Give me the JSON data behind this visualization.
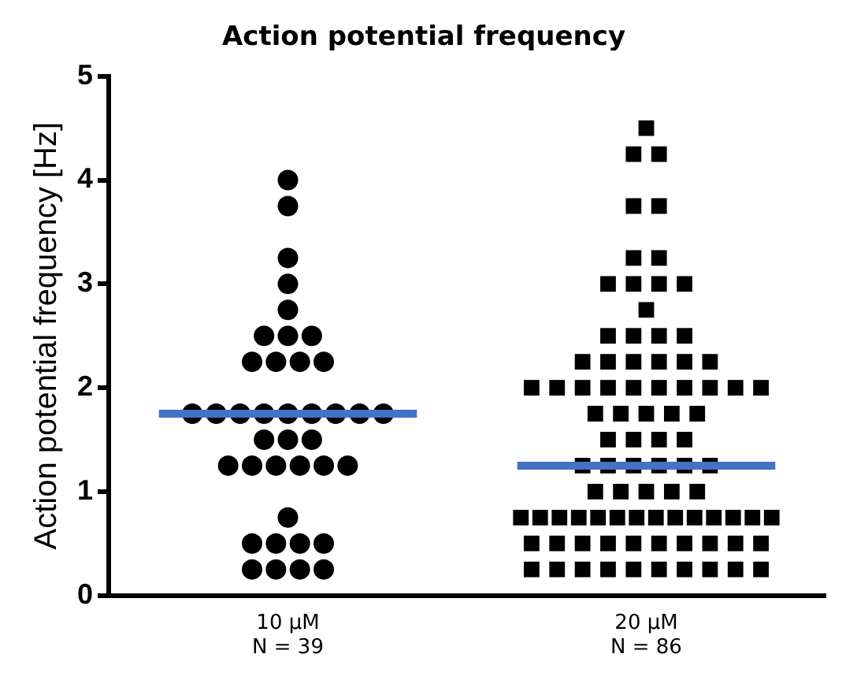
{
  "chart_data": {
    "type": "scatter",
    "title": "Action potential frequency",
    "ylabel": "Action potential frequency [Hz]",
    "categories": [
      "10 µM\nN = 39",
      "20 µM\nN = 86"
    ],
    "ylim": [
      0,
      5
    ],
    "yticks": [
      0,
      1,
      2,
      3,
      4,
      5
    ],
    "grid": false,
    "legend": false,
    "series": [
      {
        "marker": "circle",
        "color": "#000000",
        "x": [
          "10 µM\nN = 39",
          "10 µM\nN = 39",
          "10 µM\nN = 39",
          "10 µM\nN = 39",
          "10 µM\nN = 39",
          "10 µM\nN = 39",
          "10 µM\nN = 39",
          "10 µM\nN = 39",
          "10 µM\nN = 39",
          "10 µM\nN = 39",
          "10 µM\nN = 39",
          "10 µM\nN = 39",
          "10 µM\nN = 39",
          "10 µM\nN = 39",
          "10 µM\nN = 39",
          "10 µM\nN = 39",
          "10 µM\nN = 39",
          "10 µM\nN = 39",
          "10 µM\nN = 39",
          "10 µM\nN = 39",
          "10 µM\nN = 39",
          "10 µM\nN = 39",
          "10 µM\nN = 39",
          "10 µM\nN = 39",
          "10 µM\nN = 39",
          "10 µM\nN = 39",
          "10 µM\nN = 39",
          "10 µM\nN = 39",
          "10 µM\nN = 39",
          "10 µM\nN = 39",
          "10 µM\nN = 39",
          "10 µM\nN = 39",
          "10 µM\nN = 39",
          "10 µM\nN = 39",
          "10 µM\nN = 39",
          "10 µM\nN = 39",
          "10 µM\nN = 39",
          "10 µM\nN = 39",
          "10 µM\nN = 39"
        ],
        "values": [
          4,
          3.75,
          3.25,
          3,
          2.75,
          2.5,
          2.5,
          2.5,
          2.25,
          2.25,
          2.25,
          2.25,
          1.75,
          1.75,
          1.75,
          1.75,
          1.75,
          1.75,
          1.75,
          1.75,
          1.75,
          1.5,
          1.5,
          1.5,
          1.25,
          1.25,
          1.25,
          1.25,
          1.25,
          1.25,
          0.75,
          0.5,
          0.5,
          0.5,
          0.5,
          0.25,
          0.25,
          0.25,
          0.25
        ]
      },
      {
        "marker": "square",
        "color": "#000000",
        "x": [
          "20 µM\nN = 86",
          "20 µM\nN = 86",
          "20 µM\nN = 86",
          "20 µM\nN = 86",
          "20 µM\nN = 86",
          "20 µM\nN = 86",
          "20 µM\nN = 86",
          "20 µM\nN = 86",
          "20 µM\nN = 86",
          "20 µM\nN = 86",
          "20 µM\nN = 86",
          "20 µM\nN = 86",
          "20 µM\nN = 86",
          "20 µM\nN = 86",
          "20 µM\nN = 86",
          "20 µM\nN = 86",
          "20 µM\nN = 86",
          "20 µM\nN = 86",
          "20 µM\nN = 86",
          "20 µM\nN = 86",
          "20 µM\nN = 86",
          "20 µM\nN = 86",
          "20 µM\nN = 86",
          "20 µM\nN = 86",
          "20 µM\nN = 86",
          "20 µM\nN = 86",
          "20 µM\nN = 86",
          "20 µM\nN = 86",
          "20 µM\nN = 86",
          "20 µM\nN = 86",
          "20 µM\nN = 86",
          "20 µM\nN = 86",
          "20 µM\nN = 86",
          "20 µM\nN = 86",
          "20 µM\nN = 86",
          "20 µM\nN = 86",
          "20 µM\nN = 86",
          "20 µM\nN = 86",
          "20 µM\nN = 86",
          "20 µM\nN = 86",
          "20 µM\nN = 86",
          "20 µM\nN = 86",
          "20 µM\nN = 86",
          "20 µM\nN = 86",
          "20 µM\nN = 86",
          "20 µM\nN = 86",
          "20 µM\nN = 86",
          "20 µM\nN = 86",
          "20 µM\nN = 86",
          "20 µM\nN = 86",
          "20 µM\nN = 86",
          "20 µM\nN = 86",
          "20 µM\nN = 86",
          "20 µM\nN = 86",
          "20 µM\nN = 86",
          "20 µM\nN = 86",
          "20 µM\nN = 86",
          "20 µM\nN = 86",
          "20 µM\nN = 86",
          "20 µM\nN = 86",
          "20 µM\nN = 86",
          "20 µM\nN = 86",
          "20 µM\nN = 86",
          "20 µM\nN = 86",
          "20 µM\nN = 86",
          "20 µM\nN = 86",
          "20 µM\nN = 86",
          "20 µM\nN = 86",
          "20 µM\nN = 86",
          "20 µM\nN = 86",
          "20 µM\nN = 86",
          "20 µM\nN = 86",
          "20 µM\nN = 86",
          "20 µM\nN = 86",
          "20 µM\nN = 86",
          "20 µM\nN = 86",
          "20 µM\nN = 86",
          "20 µM\nN = 86",
          "20 µM\nN = 86",
          "20 µM\nN = 86",
          "20 µM\nN = 86",
          "20 µM\nN = 86",
          "20 µM\nN = 86",
          "20 µM\nN = 86",
          "20 µM\nN = 86",
          "20 µM\nN = 86"
        ],
        "values": [
          4.5,
          4.25,
          4.25,
          3.75,
          3.75,
          3.25,
          3.25,
          3,
          3,
          3,
          3,
          2.75,
          2.5,
          2.5,
          2.5,
          2.5,
          2.25,
          2.25,
          2.25,
          2.25,
          2.25,
          2.25,
          2,
          2,
          2,
          2,
          2,
          2,
          2,
          2,
          2,
          2,
          1.75,
          1.75,
          1.75,
          1.75,
          1.75,
          1.5,
          1.5,
          1.5,
          1.5,
          1.25,
          1.25,
          1.25,
          1.25,
          1.25,
          1.25,
          1,
          1,
          1,
          1,
          1,
          0.75,
          0.75,
          0.75,
          0.75,
          0.75,
          0.75,
          0.75,
          0.75,
          0.75,
          0.75,
          0.75,
          0.75,
          0.75,
          0.75,
          0.5,
          0.5,
          0.5,
          0.5,
          0.5,
          0.5,
          0.5,
          0.5,
          0.5,
          0.5,
          0.25,
          0.25,
          0.25,
          0.25,
          0.25,
          0.25,
          0.25,
          0.25,
          0.25,
          0.25
        ]
      }
    ],
    "ref_lines": [
      {
        "axis": "y",
        "value": 1.75,
        "color": "#4472c4"
      },
      {
        "axis": "y",
        "value": 1.25,
        "color": "#4472c4"
      }
    ]
  }
}
